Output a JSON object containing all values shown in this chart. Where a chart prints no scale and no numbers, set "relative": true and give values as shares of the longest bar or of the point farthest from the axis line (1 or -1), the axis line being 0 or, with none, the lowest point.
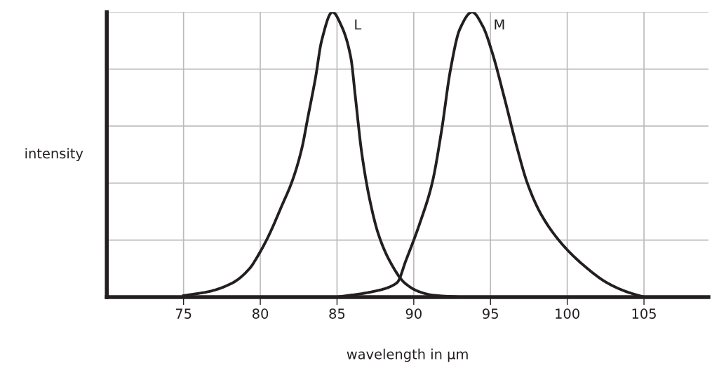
{
  "chart_data": {
    "type": "line",
    "xlabel": "wavelength in µm",
    "ylabel": "intensity",
    "relative": true,
    "xlim": [
      70,
      109.2
    ],
    "xticks": [
      75,
      80,
      85,
      90,
      95,
      100,
      105
    ],
    "grid": true,
    "tick_labels": "x",
    "legend": false,
    "series": [
      {
        "name": "L",
        "color": "#231f20",
        "x": [
          75,
          76.7,
          78.2,
          79.3,
          79.9,
          80.5,
          81.4,
          82.1,
          82.7,
          83.1,
          83.6,
          84.0,
          84.7,
          85.3,
          85.9,
          86.2,
          86.6,
          87.1,
          87.7,
          88.5,
          89.4,
          90.3,
          91.2,
          93
        ],
        "values": [
          0.005,
          0.02,
          0.05,
          0.1,
          0.15,
          0.21,
          0.32,
          0.41,
          0.52,
          0.63,
          0.77,
          0.9,
          1,
          0.95,
          0.84,
          0.7,
          0.51,
          0.35,
          0.22,
          0.12,
          0.05,
          0.02,
          0.007,
          0
        ]
      },
      {
        "name": "M",
        "color": "#231f20",
        "x": [
          85,
          87.4,
          88.9,
          89.5,
          90.4,
          91.2,
          91.8,
          92.4,
          93.0,
          93.8,
          94.5,
          95.1,
          95.9,
          96.7,
          97.4,
          98.3,
          99.6,
          101.1,
          102.6,
          103.8,
          105
        ],
        "values": [
          0,
          0.02,
          0.05,
          0.13,
          0.26,
          0.4,
          0.58,
          0.8,
          0.94,
          1,
          0.95,
          0.86,
          0.7,
          0.53,
          0.4,
          0.29,
          0.19,
          0.11,
          0.05,
          0.02,
          0
        ]
      }
    ]
  }
}
